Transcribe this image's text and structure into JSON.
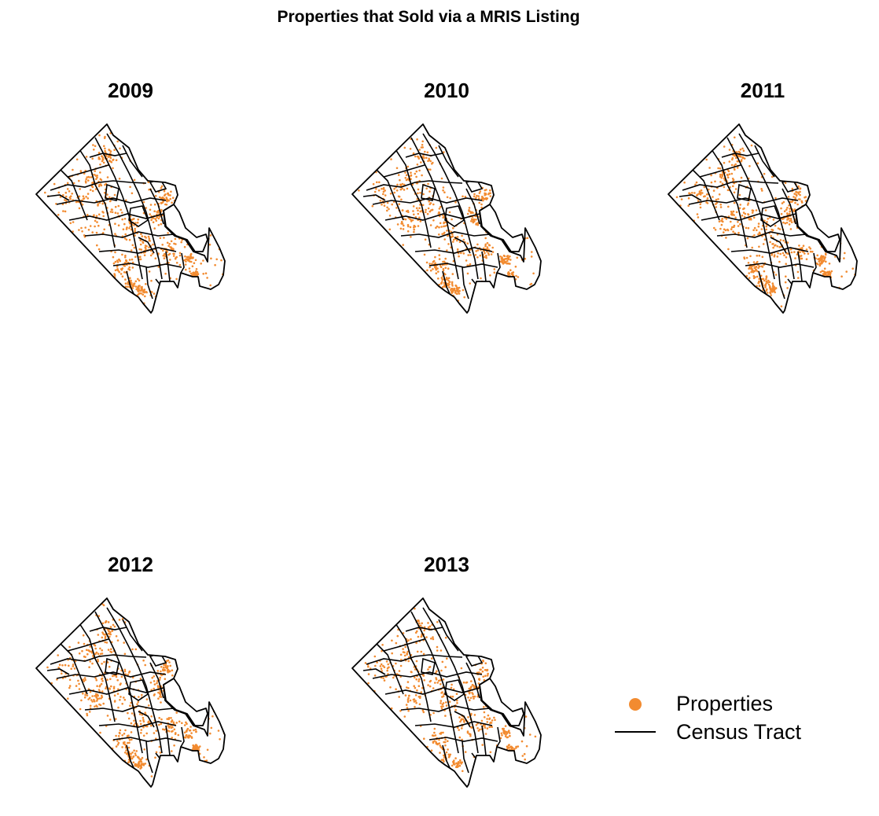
{
  "figure": {
    "title": "Properties that Sold via a MRIS Listing"
  },
  "colors": {
    "properties": "#f28b30",
    "tracts": "#000000"
  },
  "panels": [
    {
      "year": "2009",
      "seed": 11,
      "count": 900
    },
    {
      "year": "2010",
      "seed": 23,
      "count": 820
    },
    {
      "year": "2011",
      "seed": 37,
      "count": 880
    },
    {
      "year": "2012",
      "seed": 41,
      "count": 860
    },
    {
      "year": "2013",
      "seed": 59,
      "count": 700
    }
  ],
  "legend": {
    "items": [
      {
        "label": "Properties",
        "symbol": "point-icon"
      },
      {
        "label": "Census Tract",
        "symbol": "line-icon"
      }
    ]
  }
}
